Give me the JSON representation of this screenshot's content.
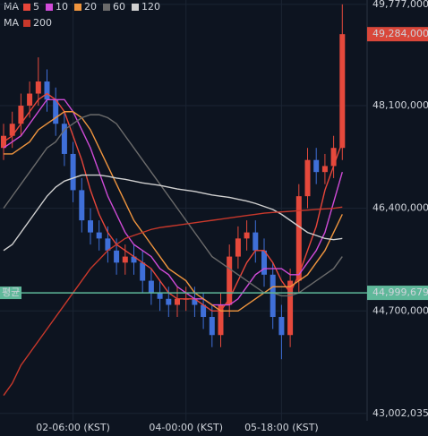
{
  "chart_data": {
    "type": "candlestick",
    "ma_label": "MA",
    "categories": [
      null,
      null,
      null,
      null,
      null,
      null,
      null,
      null,
      "02-06:00 (KST)",
      null,
      null,
      null,
      null,
      null,
      null,
      null,
      null,
      null,
      null,
      null,
      null,
      "04-00:00 (KST)",
      null,
      null,
      null,
      null,
      null,
      null,
      null,
      null,
      null,
      null,
      "05-18:00 (KST)",
      null,
      null,
      null,
      null,
      null,
      null,
      null
    ],
    "open": [
      47400000,
      47600000,
      47800000,
      48100000,
      48300000,
      48500000,
      48200000,
      47800000,
      47300000,
      46700000,
      46200000,
      46000000,
      45900000,
      45700000,
      45500000,
      45600000,
      45500000,
      45200000,
      45000000,
      44900000,
      44800000,
      44900000,
      44900000,
      44800000,
      44600000,
      44300000,
      44800000,
      45600000,
      45900000,
      46000000,
      45700000,
      45300000,
      44600000,
      44300000,
      45200000,
      46600000,
      47200000,
      47000000,
      47100000,
      47400000
    ],
    "high": [
      47800000,
      48000000,
      48300000,
      48500000,
      48900000,
      48700000,
      48400000,
      48000000,
      47500000,
      46900000,
      46400000,
      46200000,
      46100000,
      45900000,
      45800000,
      45800000,
      45700000,
      45400000,
      45200000,
      45100000,
      45100000,
      45100000,
      45100000,
      45000000,
      44800000,
      45000000,
      45800000,
      46100000,
      46200000,
      46200000,
      45900000,
      45500000,
      44800000,
      45400000,
      46800000,
      47400000,
      47400000,
      47300000,
      47600000,
      49777000
    ],
    "low": [
      47200000,
      47400000,
      47600000,
      47900000,
      48100000,
      48000000,
      47600000,
      47100000,
      46500000,
      46000000,
      45800000,
      45700000,
      45500000,
      45300000,
      45300000,
      45300000,
      45000000,
      44800000,
      44700000,
      44600000,
      44600000,
      44700000,
      44600000,
      44400000,
      44100000,
      44100000,
      44600000,
      45400000,
      45700000,
      45500000,
      45100000,
      44400000,
      43900000,
      44100000,
      45000000,
      46400000,
      46800000,
      46800000,
      46900000,
      47200000
    ],
    "close": [
      47600000,
      47800000,
      48100000,
      48300000,
      48500000,
      48200000,
      47800000,
      47300000,
      46700000,
      46200000,
      46000000,
      45900000,
      45700000,
      45500000,
      45600000,
      45500000,
      45200000,
      45000000,
      44900000,
      44800000,
      44900000,
      44900000,
      44800000,
      44600000,
      44300000,
      44800000,
      45600000,
      45900000,
      46000000,
      45700000,
      45300000,
      44600000,
      44300000,
      45200000,
      46600000,
      47200000,
      47000000,
      47100000,
      47400000,
      49284000
    ],
    "up_color": "#e5493c",
    "down_color": "#3f6fd8",
    "series": [
      {
        "name": "5",
        "color": "#e8463a",
        "values": [
          47500000,
          47600000,
          47800000,
          48000000,
          48200000,
          48300000,
          48200000,
          48000000,
          47600000,
          47200000,
          46700000,
          46300000,
          46000000,
          45800000,
          45700000,
          45600000,
          45500000,
          45400000,
          45200000,
          45000000,
          44900000,
          44900000,
          44900000,
          44800000,
          44700000,
          44700000,
          44900000,
          45200000,
          45500000,
          45700000,
          45700000,
          45500000,
          45200000,
          45000000,
          45300000,
          45700000,
          46100000,
          46700000,
          47100000,
          47500000
        ]
      },
      {
        "name": "10",
        "color": "#d04bd8",
        "values": [
          47400000,
          47500000,
          47600000,
          47800000,
          48000000,
          48200000,
          48200000,
          48200000,
          48000000,
          47700000,
          47400000,
          47000000,
          46600000,
          46300000,
          46000000,
          45800000,
          45700000,
          45600000,
          45400000,
          45300000,
          45100000,
          45000000,
          44900000,
          44900000,
          44800000,
          44800000,
          44800000,
          44900000,
          45100000,
          45300000,
          45400000,
          45400000,
          45400000,
          45300000,
          45300000,
          45500000,
          45700000,
          46000000,
          46500000,
          47000000
        ]
      },
      {
        "name": "20",
        "color": "#f0953e",
        "values": [
          47300000,
          47300000,
          47400000,
          47500000,
          47700000,
          47800000,
          47900000,
          48000000,
          48000000,
          47900000,
          47700000,
          47400000,
          47100000,
          46800000,
          46500000,
          46200000,
          46000000,
          45800000,
          45600000,
          45400000,
          45300000,
          45200000,
          45000000,
          44900000,
          44800000,
          44700000,
          44700000,
          44700000,
          44800000,
          44900000,
          45000000,
          45100000,
          45100000,
          45100000,
          45200000,
          45300000,
          45500000,
          45700000,
          46000000,
          46300000
        ]
      },
      {
        "name": "60",
        "color": "#6b6b6b",
        "values": [
          46400000,
          46600000,
          46800000,
          47000000,
          47200000,
          47400000,
          47500000,
          47700000,
          47800000,
          47900000,
          47950000,
          47950000,
          47900000,
          47800000,
          47600000,
          47400000,
          47200000,
          47000000,
          46800000,
          46600000,
          46400000,
          46200000,
          46000000,
          45800000,
          45600000,
          45500000,
          45400000,
          45300000,
          45200000,
          45100000,
          45000000,
          45000000,
          44950000,
          44950000,
          45000000,
          45100000,
          45200000,
          45300000,
          45400000,
          45600000
        ]
      },
      {
        "name": "120",
        "color": "#d0d0d0",
        "values": [
          45700000,
          45800000,
          46000000,
          46200000,
          46400000,
          46600000,
          46750000,
          46850000,
          46900000,
          46950000,
          46950000,
          46950000,
          46930000,
          46900000,
          46880000,
          46850000,
          46820000,
          46800000,
          46780000,
          46750000,
          46720000,
          46700000,
          46680000,
          46650000,
          46620000,
          46600000,
          46580000,
          46550000,
          46520000,
          46480000,
          46430000,
          46380000,
          46300000,
          46200000,
          46100000,
          46000000,
          45950000,
          45900000,
          45880000,
          45900000
        ]
      },
      {
        "name": "200",
        "color": "#c8382b",
        "values": [
          43300000,
          43500000,
          43800000,
          44000000,
          44200000,
          44400000,
          44600000,
          44800000,
          45000000,
          45200000,
          45400000,
          45550000,
          45700000,
          45800000,
          45900000,
          45950000,
          46000000,
          46050000,
          46080000,
          46100000,
          46120000,
          46140000,
          46160000,
          46180000,
          46200000,
          46220000,
          46240000,
          46260000,
          46280000,
          46300000,
          46320000,
          46330000,
          46340000,
          46350000,
          46360000,
          46370000,
          46380000,
          46390000,
          46400000,
          46420000
        ]
      }
    ],
    "ylim": [
      42880000,
      49850000
    ],
    "yticks": [
      {
        "value": 49777000,
        "label": "49,777,000"
      },
      {
        "value": 48100000,
        "label": "48,100,000"
      },
      {
        "value": 46400000,
        "label": "46,400,000"
      },
      {
        "value": 44700000,
        "label": "44,700,000"
      },
      {
        "value": 43002035,
        "label": "43,002,035"
      }
    ],
    "grid": true,
    "last_price": {
      "value": 49284000,
      "label": "49,284,000",
      "color": "#d9473a"
    },
    "average": {
      "name": "평균",
      "value": 44999679,
      "label": "44,999,679",
      "color": "#5fb89a"
    }
  }
}
